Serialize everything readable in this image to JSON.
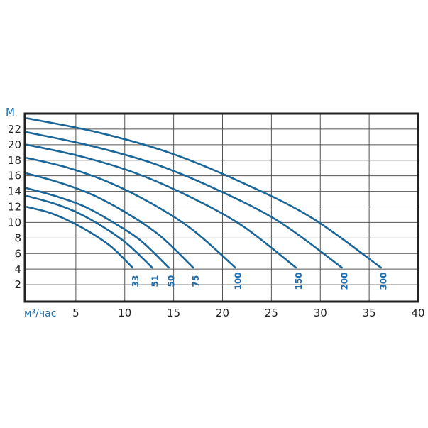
{
  "chart_data": {
    "type": "line",
    "title": "",
    "xlabel": "м³/час",
    "ylabel": "М",
    "xlim": [
      0,
      40
    ],
    "ylim": [
      0,
      24
    ],
    "grid": true,
    "x_ticks": [
      "5",
      "10",
      "15",
      "20",
      "25",
      "30",
      "35",
      "40"
    ],
    "y_ticks": [
      "2",
      "4",
      "6",
      "8",
      "10",
      "12",
      "14",
      "16",
      "18",
      "20",
      "22"
    ],
    "line_color": "#1a6699",
    "label_color": "#1f6fae",
    "series": [
      {
        "name": "33",
        "x": [
          0,
          2.2,
          4.3,
          6.5,
          8.6,
          10.8
        ],
        "y": [
          12.0,
          11.3,
          10.2,
          8.7,
          6.9,
          4.2
        ]
      },
      {
        "name": "51",
        "x": [
          0,
          2.6,
          5.1,
          7.7,
          10.2,
          12.8
        ],
        "y": [
          13.4,
          12.5,
          11.3,
          9.5,
          7.3,
          4.2
        ]
      },
      {
        "name": "50",
        "x": [
          0,
          2.9,
          5.8,
          8.7,
          11.6,
          14.5
        ],
        "y": [
          14.4,
          13.4,
          12.1,
          10.1,
          7.7,
          4.2
        ]
      },
      {
        "name": "75",
        "x": [
          0,
          3.4,
          6.8,
          10.2,
          13.6,
          17.0
        ],
        "y": [
          16.3,
          15.1,
          13.5,
          11.2,
          8.3,
          4.2
        ]
      },
      {
        "name": "100",
        "x": [
          0,
          4.3,
          8.5,
          12.8,
          17.0,
          21.3
        ],
        "y": [
          18.3,
          17.0,
          15.1,
          12.4,
          9.0,
          4.2
        ]
      },
      {
        "name": "150",
        "x": [
          0,
          5.5,
          11.0,
          16.5,
          22.0,
          27.5
        ],
        "y": [
          20.0,
          18.5,
          16.4,
          13.4,
          9.6,
          4.2
        ]
      },
      {
        "name": "200",
        "x": [
          0,
          6.4,
          12.9,
          19.3,
          25.8,
          32.2
        ],
        "y": [
          21.6,
          19.9,
          17.6,
          14.3,
          10.1,
          4.2
        ]
      },
      {
        "name": "300",
        "x": [
          0,
          7.2,
          14.5,
          21.7,
          29.0,
          36.2
        ],
        "y": [
          23.4,
          21.6,
          19.0,
          15.3,
          10.7,
          4.2
        ]
      }
    ]
  }
}
